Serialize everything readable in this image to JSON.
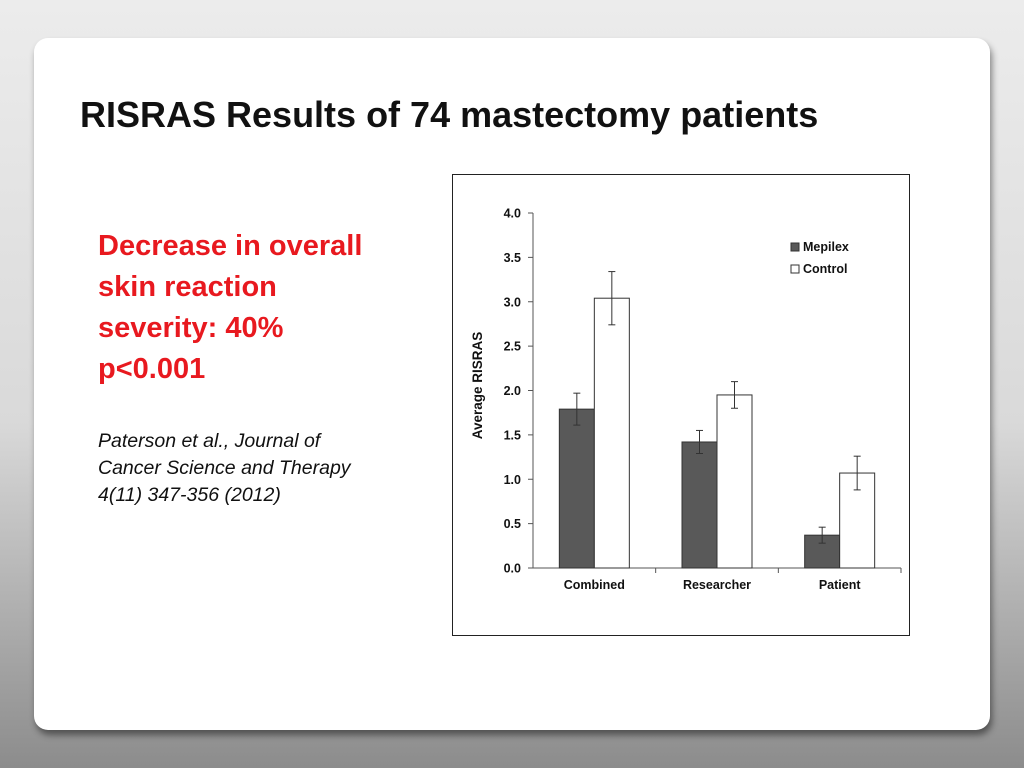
{
  "slide": {
    "title": "RISRAS Results of 74 mastectomy patients",
    "highlight_lines": [
      "Decrease in overall",
      "skin reaction",
      "severity: 40%",
      "p<0.001"
    ],
    "citation_lines": [
      "Paterson et al., Journal of",
      "Cancer Science and Therapy",
      "4(11) 347-356 (2012)"
    ]
  },
  "colors": {
    "title": "#111111",
    "highlight": "#e8191f",
    "mepilex": "#595959",
    "control": "#ffffff"
  },
  "chart_data": {
    "type": "bar",
    "title": "",
    "xlabel": "",
    "ylabel": "Average RISRAS",
    "ylim": [
      0,
      4.0
    ],
    "yticks": [
      "4.0",
      "3.5",
      "3.0",
      "2.5",
      "2.0",
      "1.5",
      "1.0",
      "0.5",
      "0.0"
    ],
    "categories": [
      "Combined",
      "Researcher",
      "Patient"
    ],
    "series": [
      {
        "name": "Mepilex",
        "values": [
          1.79,
          1.42,
          0.37
        ],
        "errors": [
          0.18,
          0.13,
          0.09
        ]
      },
      {
        "name": "Control",
        "values": [
          3.04,
          1.95,
          1.07
        ],
        "errors": [
          0.3,
          0.15,
          0.19
        ]
      }
    ],
    "legend": {
      "position": "top-right",
      "entries": [
        "Mepilex",
        "Control"
      ]
    },
    "grid": false
  }
}
